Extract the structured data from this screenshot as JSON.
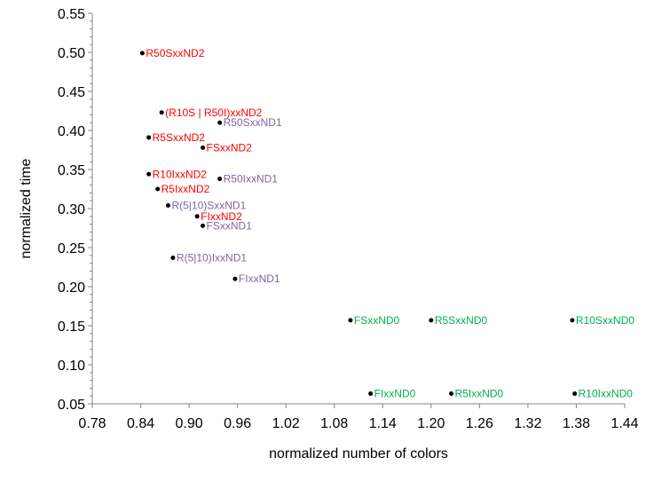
{
  "chart_data": {
    "type": "scatter",
    "xlabel": "normalized number of colors",
    "ylabel": "normalized time",
    "xlim": [
      0.78,
      1.44
    ],
    "ylim": [
      0.05,
      0.55
    ],
    "x_ticks": [
      "0.78",
      "0.84",
      "0.90",
      "0.96",
      "1.02",
      "1.08",
      "1.14",
      "1.20",
      "1.26",
      "1.32",
      "1.38",
      "1.44"
    ],
    "y_ticks": [
      "0.05",
      "0.10",
      "0.15",
      "0.20",
      "0.25",
      "0.30",
      "0.35",
      "0.40",
      "0.45",
      "0.50",
      "0.55"
    ],
    "grid": false,
    "legend": "none",
    "colors": {
      "ND2": "#ff0000",
      "ND1": "#8064a2",
      "ND0": "#00b050",
      "marker": "#000000"
    },
    "points": [
      {
        "label": "R50SxxND2",
        "x": 0.842,
        "y": 0.499,
        "group": "ND2"
      },
      {
        "label": "(R10S | R50I)xxND2",
        "x": 0.866,
        "y": 0.423,
        "group": "ND2"
      },
      {
        "label": "R50SxxND1",
        "x": 0.938,
        "y": 0.41,
        "group": "ND1"
      },
      {
        "label": "R5SxxND2",
        "x": 0.85,
        "y": 0.391,
        "group": "ND2"
      },
      {
        "label": "FSxxND2",
        "x": 0.917,
        "y": 0.378,
        "group": "ND2"
      },
      {
        "label": "R10IxxND2",
        "x": 0.85,
        "y": 0.344,
        "group": "ND2"
      },
      {
        "label": "R50IxxND1",
        "x": 0.938,
        "y": 0.338,
        "group": "ND1"
      },
      {
        "label": "R5IxxND2",
        "x": 0.861,
        "y": 0.325,
        "group": "ND2"
      },
      {
        "label": "R(5|10)SxxND1",
        "x": 0.874,
        "y": 0.304,
        "group": "ND1"
      },
      {
        "label": "FIxxND2",
        "x": 0.91,
        "y": 0.29,
        "group": "ND2"
      },
      {
        "label": "FSxxND1",
        "x": 0.917,
        "y": 0.278,
        "group": "ND1"
      },
      {
        "label": "R(5|10)IxxND1",
        "x": 0.88,
        "y": 0.237,
        "group": "ND1"
      },
      {
        "label": "FIxxND1",
        "x": 0.957,
        "y": 0.21,
        "group": "ND1"
      },
      {
        "label": "FSxxND0",
        "x": 1.1,
        "y": 0.157,
        "group": "ND0"
      },
      {
        "label": "R5SxxND0",
        "x": 1.2,
        "y": 0.157,
        "group": "ND0"
      },
      {
        "label": "R10SxxND0",
        "x": 1.375,
        "y": 0.157,
        "group": "ND0"
      },
      {
        "label": "FIxxND0",
        "x": 1.125,
        "y": 0.063,
        "group": "ND0"
      },
      {
        "label": "R5IxxND0",
        "x": 1.225,
        "y": 0.063,
        "group": "ND0"
      },
      {
        "label": "R10IxxND0",
        "x": 1.378,
        "y": 0.063,
        "group": "ND0"
      }
    ]
  }
}
